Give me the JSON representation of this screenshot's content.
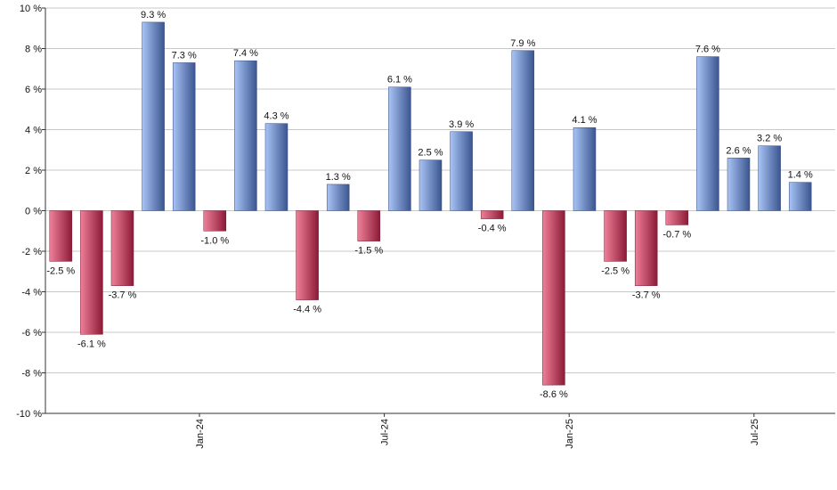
{
  "chart_data": {
    "type": "bar",
    "ylim": [
      -10,
      10
    ],
    "y_ticks": [
      -10,
      -8,
      -6,
      -4,
      -2,
      0,
      2,
      4,
      6,
      8,
      10
    ],
    "y_tick_format": "{v} %",
    "grid": true,
    "legend": "none",
    "x_tick_labels": [
      {
        "label": "Jan-24",
        "index": 5
      },
      {
        "label": "Jul-24",
        "index": 11
      },
      {
        "label": "Jan-25",
        "index": 17
      },
      {
        "label": "Jul-25",
        "index": 23
      }
    ],
    "values": [
      -2.5,
      -6.1,
      -3.7,
      9.3,
      7.3,
      -1.0,
      7.4,
      4.3,
      -4.4,
      1.3,
      -1.5,
      6.1,
      2.5,
      3.9,
      -0.4,
      7.9,
      -8.6,
      4.1,
      -2.5,
      -3.7,
      -0.7,
      7.6,
      2.6,
      3.2,
      1.4
    ],
    "labels": [
      "-2.5 %",
      "-6.1 %",
      "-3.7 %",
      "9.3 %",
      "7.3 %",
      "-1.0 %",
      "7.4 %",
      "4.3 %",
      "-4.4 %",
      "1.3 %",
      "-1.5 %",
      "6.1 %",
      "2.5 %",
      "3.9 %",
      "-0.4 %",
      "7.9 %",
      "-8.6 %",
      "4.1 %",
      "-2.5 %",
      "-3.7 %",
      "-0.7 %",
      "7.6 %",
      "2.6 %",
      "3.2 %",
      "1.4 %"
    ],
    "colors": {
      "positive_light": "#a9c4f5",
      "positive_dark": "#3b5590",
      "negative_light": "#ef8099",
      "negative_dark": "#8c1a37",
      "grid": "#c8c8c8",
      "axis": "#333333"
    }
  }
}
